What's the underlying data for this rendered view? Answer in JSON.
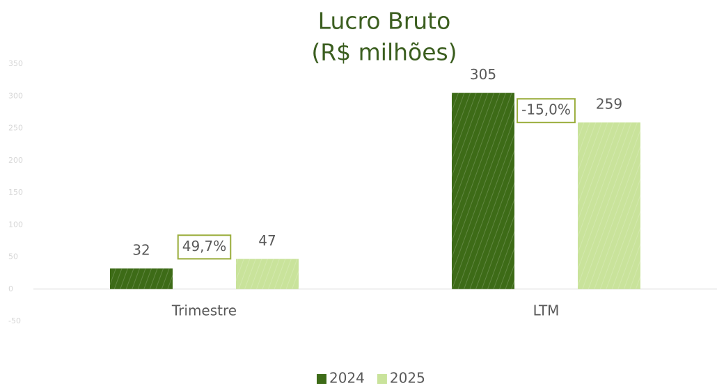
{
  "chart_data": {
    "type": "bar",
    "title": [
      "Lucro Bruto",
      "(R$ milhões)"
    ],
    "categories": [
      "Trimestre",
      "LTM"
    ],
    "series": [
      {
        "name": "2024",
        "color": "#3d6b17",
        "values": [
          32,
          305
        ]
      },
      {
        "name": "2025",
        "color": "#c9e39b",
        "values": [
          47,
          259
        ]
      }
    ],
    "annotations": [
      "49,7%",
      "-15,0%"
    ],
    "annotation_color": "#9aad3c",
    "ylim": [
      -50,
      350
    ],
    "yticks": [
      -50,
      0,
      50,
      100,
      150,
      200,
      250,
      300,
      350
    ],
    "grid": false,
    "legend": "bottom"
  }
}
